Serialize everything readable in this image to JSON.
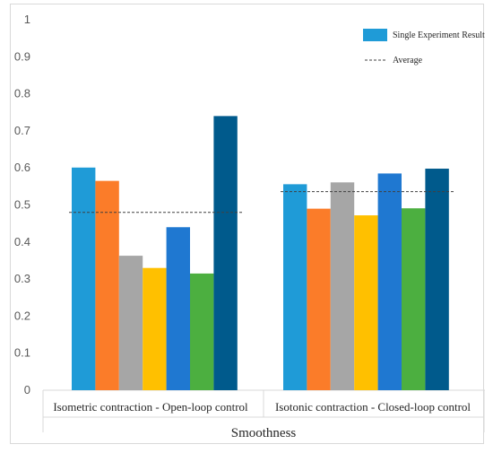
{
  "chart_data": {
    "type": "bar",
    "title": "",
    "xlabel": "Smoothness",
    "ylabel": "",
    "ylim": [
      0,
      1
    ],
    "yticks": [
      0,
      0.1,
      0.2,
      0.3,
      0.4,
      0.5,
      0.6,
      0.7,
      0.8,
      0.9,
      1
    ],
    "ytick_labels": [
      "0",
      "0.1",
      "0.2",
      "0.3",
      "0.4",
      "0.5",
      "0.6",
      "0.7",
      "0.8",
      "0.9",
      "1"
    ],
    "grid": false,
    "legend_placement": "top-right",
    "legend": {
      "bar_label": "Single Experiment Result",
      "line_label": "Average"
    },
    "categories": [
      "Isometric contraction - Open-loop control",
      "Isotonic contraction - Closed-loop control"
    ],
    "groups": [
      {
        "category": "Isometric contraction - Open-loop control",
        "values": [
          0.601,
          0.565,
          0.363,
          0.33,
          0.44,
          0.315,
          0.74
        ],
        "average": 0.48
      },
      {
        "category": "Isotonic contraction - Closed-loop control",
        "values": [
          0.556,
          0.49,
          0.561,
          0.472,
          0.585,
          0.491,
          0.598
        ],
        "average": 0.536
      }
    ],
    "bar_colors": [
      "#1f9bd7",
      "#fb7c29",
      "#a6a6a6",
      "#ffc000",
      "#1f78d1",
      "#4caf40",
      "#005a8c"
    ]
  }
}
